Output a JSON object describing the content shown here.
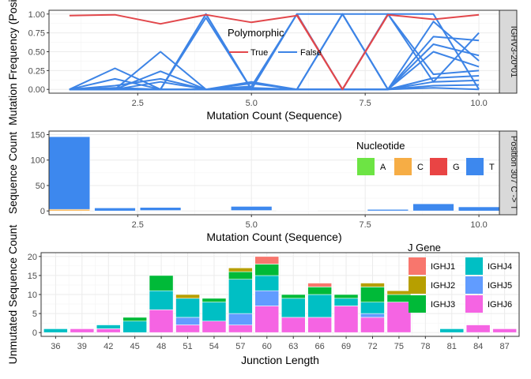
{
  "chart_data": [
    {
      "type": "line",
      "xlabel": "Mutation Count (Sequence)",
      "ylabel": "Mutation Frequency (Position)",
      "facet_label": "IGHV3-20*01",
      "xlim": [
        0.55,
        10.45
      ],
      "ylim": [
        -0.05,
        1.05
      ],
      "xticks": [
        2.5,
        5.0,
        7.5,
        10.0
      ],
      "xtick_labels": [
        "2.5",
        "5.0",
        "7.5",
        "10.0"
      ],
      "yticks": [
        0,
        0.25,
        0.5,
        0.75,
        1.0
      ],
      "ytick_labels": [
        "0.00",
        "0.25",
        "0.50",
        "0.75",
        "1.00"
      ],
      "legend_title": "Polymorphic",
      "legend_position": "inside-top",
      "grid": true,
      "series": [
        {
          "name": "True",
          "color": "#e2474b",
          "group": "True",
          "x": [
            1,
            2,
            3,
            4,
            5,
            6,
            7,
            8,
            9,
            10
          ],
          "y": [
            0.98,
            0.99,
            0.87,
            0.99,
            0.89,
            0.98,
            0.0,
            0.99,
            0.93,
            0.99
          ]
        },
        {
          "name": "True",
          "color": "#e2474b",
          "group": "True",
          "x": [
            6,
            7,
            8
          ],
          "y": [
            0.99,
            0.0,
            0.99
          ]
        },
        {
          "color": "#3d84e6",
          "group": "False",
          "x": [
            1,
            2,
            3,
            4,
            5,
            6,
            7,
            8,
            9,
            10
          ],
          "y": [
            0,
            0.28,
            0,
            0,
            0,
            0,
            1,
            1,
            0.1,
            0.75
          ]
        },
        {
          "color": "#3d84e6",
          "group": "False",
          "x": [
            1,
            2,
            3,
            4,
            5,
            6,
            7,
            8,
            9,
            10
          ],
          "y": [
            0,
            0,
            0.5,
            0,
            0,
            1,
            1,
            0,
            0.7,
            0.65
          ]
        },
        {
          "color": "#3d84e6",
          "group": "False",
          "x": [
            1,
            2,
            3,
            4,
            5,
            6,
            7,
            8,
            9,
            10
          ],
          "y": [
            0,
            0.14,
            0,
            1,
            0,
            0,
            0,
            1,
            1,
            0
          ]
        },
        {
          "color": "#3d84e6",
          "group": "False",
          "x": [
            1,
            2,
            3,
            4,
            5,
            6,
            7,
            8,
            9,
            10
          ],
          "y": [
            0,
            0.05,
            0.14,
            0,
            0.1,
            0,
            1,
            0,
            0.6,
            0.45
          ]
        },
        {
          "color": "#3d84e6",
          "group": "False",
          "x": [
            1,
            2,
            3,
            4,
            5,
            6,
            7,
            8,
            9,
            10
          ],
          "y": [
            0,
            0,
            0.24,
            0,
            0.04,
            1,
            0,
            0,
            0.9,
            0.38
          ]
        },
        {
          "color": "#3d84e6",
          "group": "False",
          "x": [
            1,
            2,
            3,
            4,
            5,
            6,
            7,
            8,
            9,
            10
          ],
          "y": [
            0,
            0,
            0,
            1,
            0,
            0,
            1,
            0,
            0.5,
            0.3
          ]
        },
        {
          "color": "#3d84e6",
          "group": "False",
          "x": [
            1,
            2,
            3,
            4,
            5,
            6,
            7,
            8,
            9,
            10
          ],
          "y": [
            0,
            0.02,
            0,
            0.95,
            0,
            0,
            0,
            1,
            0.2,
            0.25
          ]
        },
        {
          "color": "#3d84e6",
          "group": "False",
          "x": [
            1,
            2,
            3,
            4,
            5,
            6,
            7,
            8,
            9,
            10
          ],
          "y": [
            0,
            0,
            0.1,
            0,
            0.08,
            0,
            0,
            0,
            0.15,
            0.18
          ]
        },
        {
          "color": "#3d84e6",
          "group": "False",
          "x": [
            1,
            2,
            3,
            4,
            5,
            6,
            7,
            8,
            9,
            10
          ],
          "y": [
            0,
            0,
            0,
            0,
            0,
            0,
            0,
            0,
            0.1,
            0.12
          ]
        },
        {
          "color": "#3d84e6",
          "group": "False",
          "x": [
            1,
            2,
            3,
            4,
            5,
            6,
            7,
            8,
            9,
            10
          ],
          "y": [
            0,
            0,
            0,
            0,
            0.02,
            0,
            0,
            0,
            0.05,
            0.06
          ]
        },
        {
          "color": "#3d84e6",
          "group": "False",
          "x": [
            1,
            2,
            3,
            4,
            5,
            6,
            7,
            8,
            9,
            10
          ],
          "y": [
            0,
            0,
            0,
            0,
            0,
            0,
            0,
            0,
            0.02,
            0.0
          ]
        }
      ],
      "legend_entries": [
        {
          "label": "True",
          "color": "#e2474b"
        },
        {
          "label": "False",
          "color": "#3d84e6"
        }
      ]
    },
    {
      "type": "bar",
      "stacked": true,
      "xlabel": "Mutation Count (Sequence)",
      "ylabel": "Sequence Count",
      "facet_label": "Position 307 C -> T",
      "xlim": [
        0.55,
        10.45
      ],
      "ylim": [
        -7.5,
        157
      ],
      "xticks": [
        2.5,
        5.0,
        7.5,
        10.0
      ],
      "xtick_labels": [
        "2.5",
        "5.0",
        "7.5",
        "10.0"
      ],
      "yticks": [
        0,
        50,
        100,
        150
      ],
      "ytick_labels": [
        "0",
        "50",
        "100",
        "150"
      ],
      "legend_title": "Nucleotide",
      "legend_position": "inside-top-right",
      "grid": true,
      "categories": [
        1,
        2,
        3,
        4,
        5,
        6,
        7,
        8,
        9,
        10
      ],
      "series": [
        {
          "name": "A",
          "color": "#6de444",
          "values": [
            0,
            0,
            0,
            0,
            0,
            0,
            0,
            0,
            0,
            0
          ]
        },
        {
          "name": "C",
          "color": "#f6ad45",
          "values": [
            3,
            0,
            1,
            0,
            1,
            0,
            0,
            0,
            0,
            0
          ]
        },
        {
          "name": "G",
          "color": "#e94444",
          "values": [
            0,
            0,
            0,
            0,
            0,
            0,
            0,
            0,
            0,
            0
          ]
        },
        {
          "name": "T",
          "color": "#3d88ee",
          "values": [
            143,
            6,
            6,
            0,
            8,
            1,
            0,
            3,
            14,
            8
          ]
        }
      ]
    },
    {
      "type": "bar",
      "stacked": true,
      "xlabel": "Junction Length",
      "ylabel": "Unmutated Sequence Count",
      "xlim": [
        34.35,
        88.65
      ],
      "ylim": [
        -1,
        21
      ],
      "xticks": [
        36,
        39,
        42,
        45,
        48,
        51,
        54,
        57,
        60,
        63,
        66,
        69,
        72,
        75,
        78,
        81,
        84,
        87
      ],
      "xtick_labels": [
        "36",
        "39",
        "42",
        "45",
        "48",
        "51",
        "54",
        "57",
        "60",
        "63",
        "66",
        "69",
        "72",
        "75",
        "78",
        "81",
        "84",
        "87"
      ],
      "yticks": [
        0,
        5,
        10,
        15,
        20
      ],
      "ytick_labels": [
        "0",
        "5",
        "10",
        "15",
        "20"
      ],
      "legend_title": "J Gene",
      "legend_position": "inside-top-right",
      "grid": true,
      "categories": [
        36,
        39,
        42,
        45,
        48,
        51,
        54,
        57,
        60,
        63,
        66,
        69,
        72,
        75,
        78,
        81,
        84,
        87
      ],
      "series": [
        {
          "name": "IGHJ6",
          "color": "#f564e3",
          "values": [
            0,
            1,
            1,
            0,
            6,
            2,
            3,
            2,
            7,
            4,
            4,
            7,
            4,
            8,
            0,
            0,
            2,
            1
          ]
        },
        {
          "name": "IGHJ5",
          "color": "#619cff",
          "values": [
            0,
            0,
            0,
            0,
            0,
            2,
            0,
            3,
            4,
            0,
            0,
            0,
            1,
            0,
            0,
            0,
            0,
            0
          ]
        },
        {
          "name": "IGHJ4",
          "color": "#00bfc4",
          "values": [
            1,
            0,
            1,
            3,
            5,
            5,
            5,
            9,
            4,
            5,
            6,
            2,
            3,
            0,
            0,
            1,
            0,
            0
          ]
        },
        {
          "name": "IGHJ3",
          "color": "#00ba38",
          "values": [
            0,
            0,
            0,
            1,
            4,
            0,
            1,
            2,
            3,
            1,
            2,
            1,
            4,
            2,
            0,
            0,
            0,
            0
          ]
        },
        {
          "name": "IGHJ2",
          "color": "#b79f00",
          "values": [
            0,
            0,
            0,
            0,
            0,
            1,
            0,
            1,
            0,
            0,
            0,
            0,
            1,
            1,
            0,
            0,
            0,
            0
          ]
        },
        {
          "name": "IGHJ1",
          "color": "#f8766d",
          "values": [
            0,
            0,
            0,
            0,
            0,
            0,
            0,
            0,
            2,
            0,
            1,
            0,
            0,
            0,
            0,
            0,
            0,
            0
          ]
        }
      ],
      "legend_entries": [
        {
          "label": "IGHJ1",
          "color": "#f8766d"
        },
        {
          "label": "IGHJ2",
          "color": "#b79f00"
        },
        {
          "label": "IGHJ3",
          "color": "#00ba38"
        },
        {
          "label": "IGHJ4",
          "color": "#00bfc4"
        },
        {
          "label": "IGHJ5",
          "color": "#619cff"
        },
        {
          "label": "IGHJ6",
          "color": "#f564e3"
        }
      ]
    }
  ]
}
